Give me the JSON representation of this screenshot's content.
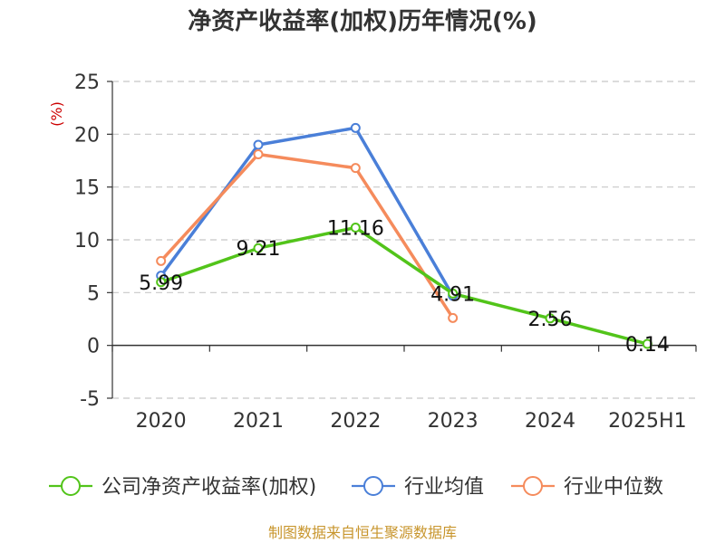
{
  "chart_data": {
    "type": "line",
    "title": "净资产收益率(加权)历年情况(%)",
    "ylabel": "(%)",
    "xlabel": "",
    "categories": [
      "2020",
      "2021",
      "2022",
      "2023",
      "2024",
      "2025H1"
    ],
    "yticks": [
      "-5",
      "0",
      "5",
      "10",
      "15",
      "20",
      "25"
    ],
    "ylim": [
      -5,
      25
    ],
    "grid": true,
    "legend_position": "bottom",
    "series": [
      {
        "name": "公司净资产收益率(加权)",
        "color": "#52c41a",
        "values": [
          5.99,
          9.21,
          11.16,
          4.91,
          2.56,
          0.14
        ],
        "labels": [
          "5.99",
          "9.21",
          "11.16",
          "4.91",
          "2.56",
          "0.14"
        ]
      },
      {
        "name": "行业均值",
        "color": "#4a7fd8",
        "values": [
          6.6,
          19.0,
          20.6,
          4.7,
          null,
          null
        ]
      },
      {
        "name": "行业中位数",
        "color": "#f58b5c",
        "values": [
          8.0,
          18.1,
          16.8,
          2.6,
          null,
          null
        ]
      }
    ],
    "source": "制图数据来自恒生聚源数据库"
  }
}
